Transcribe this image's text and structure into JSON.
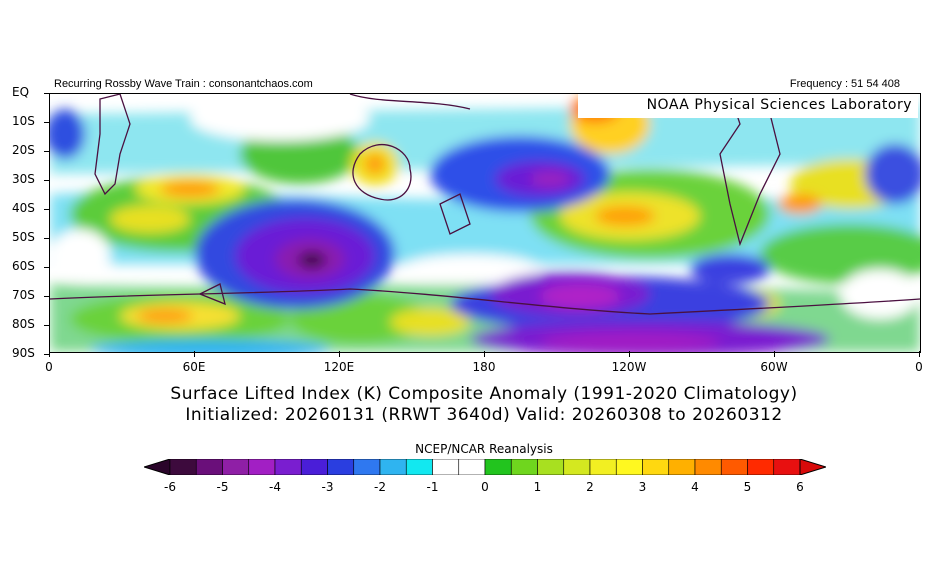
{
  "header": {
    "left": "Recurring Rossby Wave Train : consonantchaos.com",
    "right": "Frequency : 51 54 408"
  },
  "map": {
    "badge": "NOAA Physical Sciences Laboratory",
    "y_labels": [
      "EQ",
      "10S",
      "20S",
      "30S",
      "40S",
      "50S",
      "60S",
      "70S",
      "80S",
      "90S"
    ],
    "x_labels": [
      "0",
      "60E",
      "120E",
      "180",
      "120W",
      "60W",
      "0"
    ]
  },
  "title_line1": "Surface Lifted Index (K) Composite Anomaly (1991-2020 Climatology)",
  "title_line2": "Initialized: 20260131 (RRWT 3640d) Valid: 20260308 to 20260312",
  "colorbar": {
    "title": "NCEP/NCAR Reanalysis",
    "labels": [
      "-6",
      "-5",
      "-4",
      "-3",
      "-2",
      "-1",
      "0",
      "1",
      "2",
      "3",
      "4",
      "5",
      "6"
    ],
    "colors": [
      "#3d0a3d",
      "#6a0f7a",
      "#8f1fa6",
      "#a21fc4",
      "#7a1ed0",
      "#4a1ed8",
      "#2a3ee0",
      "#2f78f0",
      "#2fb4f0",
      "#12e8f0",
      "#ffffff",
      "#ffffff",
      "#22c41e",
      "#6fd61e",
      "#a8e020",
      "#d4e820",
      "#f2ef22",
      "#fff820",
      "#ffd810",
      "#ffb000",
      "#ff8a00",
      "#ff5a00",
      "#ff2a00",
      "#e81010"
    ],
    "low_arrow_color": "#2a052a",
    "high_arrow_color": "#d80a0a"
  }
}
